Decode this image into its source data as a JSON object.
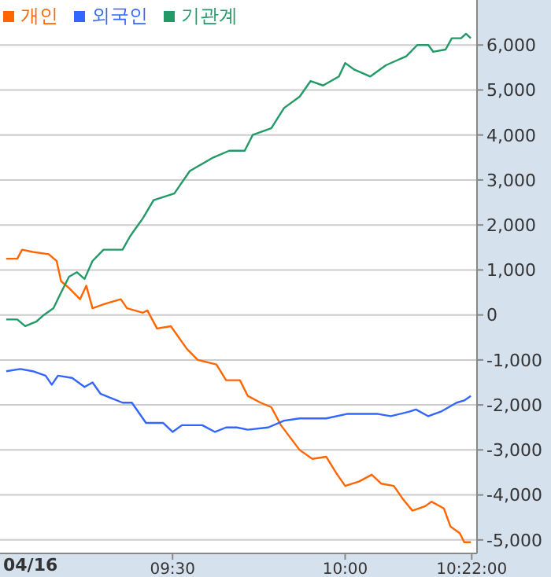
{
  "chart_data": {
    "type": "line",
    "legend": "top left",
    "grid": "y",
    "marker": "none",
    "line_style": "solid",
    "annotations": [
      "04/16"
    ],
    "xlim": [
      9,
      10.382
    ],
    "xticks": [
      {
        "value": 9.5,
        "label": "09:30"
      },
      {
        "value": 10,
        "label": "10:00"
      },
      {
        "value": 10.3667,
        "label": "10:22:00"
      }
    ],
    "ylim": [
      -5300,
      7000
    ],
    "yticks": [
      {
        "value": -5000,
        "label": "-5,000"
      },
      {
        "value": -4000,
        "label": "-4,000"
      },
      {
        "value": -3000,
        "label": "-3,000"
      },
      {
        "value": -2000,
        "label": "-2,000"
      },
      {
        "value": -1000,
        "label": "-1,000"
      },
      0,
      {
        "value": 1000,
        "label": "1,000"
      },
      {
        "value": 2000,
        "label": "2,000"
      },
      {
        "value": 3000,
        "label": "3,000"
      },
      {
        "value": 4000,
        "label": "4,000"
      },
      {
        "value": 5000,
        "label": "5,000"
      },
      {
        "value": 6000,
        "label": "6,000"
      }
    ],
    "series": [
      {
        "name": "개인",
        "color": "#ff6600",
        "x": [
          9.018,
          9.05,
          9.064,
          9.095,
          9.141,
          9.164,
          9.177,
          9.2,
          9.232,
          9.25,
          9.268,
          9.305,
          9.35,
          9.368,
          9.414,
          9.427,
          9.455,
          9.495,
          9.541,
          9.573,
          9.627,
          9.655,
          9.695,
          9.718,
          9.755,
          9.786,
          9.814,
          9.868,
          9.905,
          9.945,
          9.973,
          10,
          10.041,
          10.077,
          10.105,
          10.141,
          10.168,
          10.195,
          10.232,
          10.25,
          10.286,
          10.305,
          10.332,
          10.345,
          10.364
        ],
        "values": [
          1250,
          1250,
          1450,
          1400,
          1350,
          1200,
          750,
          600,
          350,
          650,
          150,
          250,
          350,
          150,
          50,
          100,
          -300,
          -250,
          -750,
          -1000,
          -1100,
          -1450,
          -1450,
          -1800,
          -1950,
          -2050,
          -2450,
          -3000,
          -3200,
          -3150,
          -3500,
          -3800,
          -3700,
          -3550,
          -3750,
          -3800,
          -4100,
          -4350,
          -4250,
          -4150,
          -4300,
          -4700,
          -4850,
          -5050,
          -5050
        ]
      },
      {
        "name": "외국인",
        "color": "#3366ff",
        "x": [
          9.018,
          9.059,
          9.095,
          9.132,
          9.15,
          9.168,
          9.209,
          9.245,
          9.268,
          9.291,
          9.323,
          9.355,
          9.382,
          9.423,
          9.473,
          9.5,
          9.527,
          9.586,
          9.623,
          9.655,
          9.686,
          9.718,
          9.777,
          9.823,
          9.868,
          9.945,
          10.005,
          10.095,
          10.132,
          10.186,
          10.205,
          10.241,
          10.277,
          10.323,
          10.345,
          10.364
        ],
        "values": [
          -1250,
          -1200,
          -1250,
          -1350,
          -1550,
          -1350,
          -1400,
          -1600,
          -1500,
          -1750,
          -1850,
          -1950,
          -1950,
          -2400,
          -2400,
          -2600,
          -2450,
          -2450,
          -2600,
          -2500,
          -2500,
          -2550,
          -2500,
          -2350,
          -2300,
          -2300,
          -2200,
          -2200,
          -2250,
          -2150,
          -2100,
          -2250,
          -2150,
          -1950,
          -1900,
          -1800
        ]
      },
      {
        "name": "기관계",
        "color": "#229966",
        "x": [
          9.018,
          9.05,
          9.073,
          9.105,
          9.127,
          9.155,
          9.177,
          9.2,
          9.223,
          9.245,
          9.268,
          9.3,
          9.355,
          9.377,
          9.414,
          9.445,
          9.505,
          9.55,
          9.618,
          9.664,
          9.709,
          9.732,
          9.786,
          9.823,
          9.868,
          9.9,
          9.936,
          9.982,
          10,
          10.027,
          10.073,
          10.118,
          10.177,
          10.209,
          10.241,
          10.255,
          10.291,
          10.309,
          10.336,
          10.35,
          10.364
        ],
        "values": [
          -100,
          -100,
          -250,
          -150,
          0,
          150,
          500,
          850,
          950,
          800,
          1200,
          1450,
          1450,
          1750,
          2150,
          2550,
          2700,
          3200,
          3500,
          3650,
          3650,
          4000,
          4150,
          4600,
          4850,
          5200,
          5100,
          5300,
          5600,
          5450,
          5300,
          5550,
          5750,
          6000,
          6000,
          5850,
          5900,
          6150,
          6150,
          6250,
          6150
        ]
      }
    ]
  }
}
